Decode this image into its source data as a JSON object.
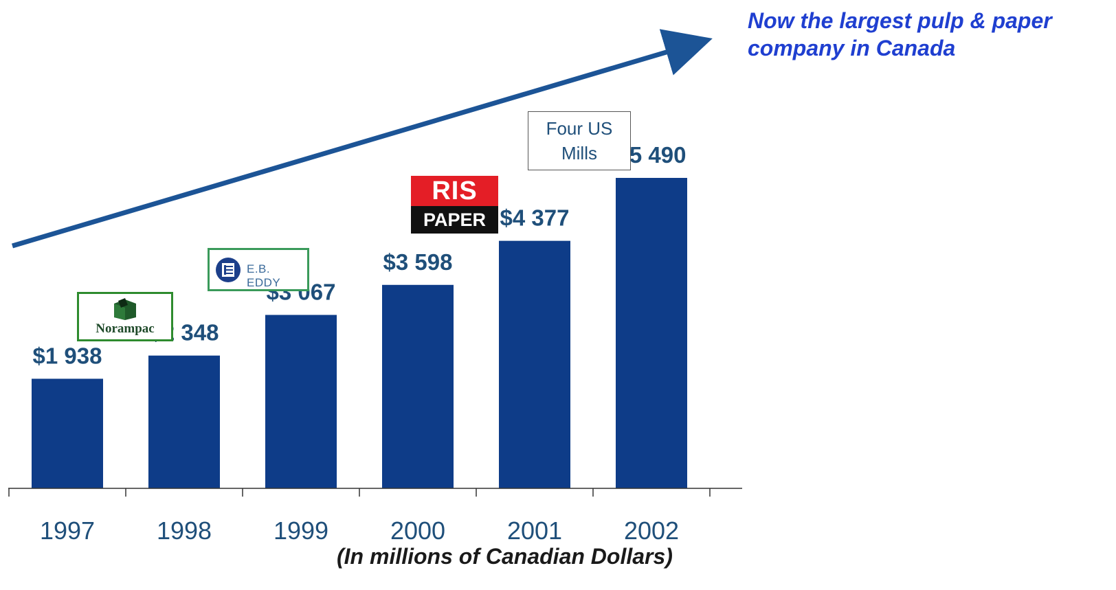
{
  "headline": {
    "line1": "Now the largest pulp & paper",
    "line2": "company in Canada"
  },
  "footnote": "(In millions of Canadian Dollars)",
  "logos": {
    "norampac": "Norampac",
    "ebeddy": "E.B. EDDY",
    "ris_top": "RIS",
    "ris_bottom": "PAPER",
    "mills_line1": "Four US",
    "mills_line2": "Mills"
  },
  "colors": {
    "bar": "#0e3c88",
    "arrow": "#1c5496",
    "headline": "#1f3fd0"
  },
  "chart_data": {
    "type": "bar",
    "title": "",
    "xlabel": "",
    "ylabel": "",
    "categories": [
      "1997",
      "1998",
      "1999",
      "2000",
      "2001",
      "2002"
    ],
    "values": [
      1938,
      2348,
      3067,
      3598,
      4377,
      5490
    ],
    "value_labels": [
      "$1 938",
      "$2 348",
      "$3 067",
      "$3 598",
      "$4 377",
      "$5 490"
    ],
    "ylim": [
      0,
      5490
    ],
    "grid": false,
    "legend": "none",
    "annotations": [
      "trend-arrow"
    ]
  }
}
